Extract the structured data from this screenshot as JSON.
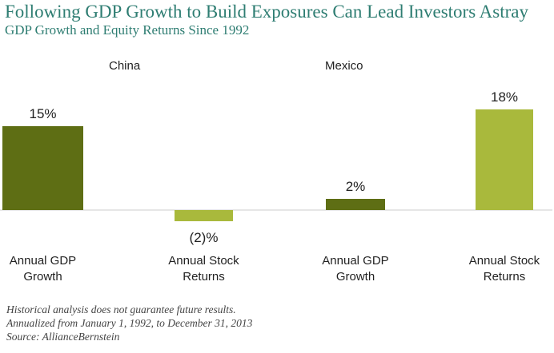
{
  "title": "Following GDP Growth to Build Exposures Can Lead Investors Astray",
  "subtitle": "GDP Growth and Equity Returns Since 1992",
  "notes": [
    "Historical analysis does not guarantee future results.",
    "Annualized from January 1, 1992, to December 31, 2013",
    "Source: AllianceBernstein"
  ],
  "colors": {
    "gdp": "#5e6e14",
    "stock": "#a9b93c",
    "title": "#2e7d72"
  },
  "chart_data": [
    {
      "type": "bar",
      "title": "China",
      "categories": [
        [
          "Annual GDP",
          "Growth"
        ],
        [
          "Annual Stock",
          "Returns"
        ]
      ],
      "values": [
        15,
        -2
      ],
      "data_labels": [
        "15%",
        "(2)%"
      ],
      "unit": "%",
      "grid": false
    },
    {
      "type": "bar",
      "title": "Mexico",
      "categories": [
        [
          "Annual GDP",
          "Growth"
        ],
        [
          "Annual Stock",
          "Returns"
        ]
      ],
      "values": [
        2,
        18
      ],
      "data_labels": [
        "2%",
        "18%"
      ],
      "unit": "%",
      "grid": false
    }
  ]
}
